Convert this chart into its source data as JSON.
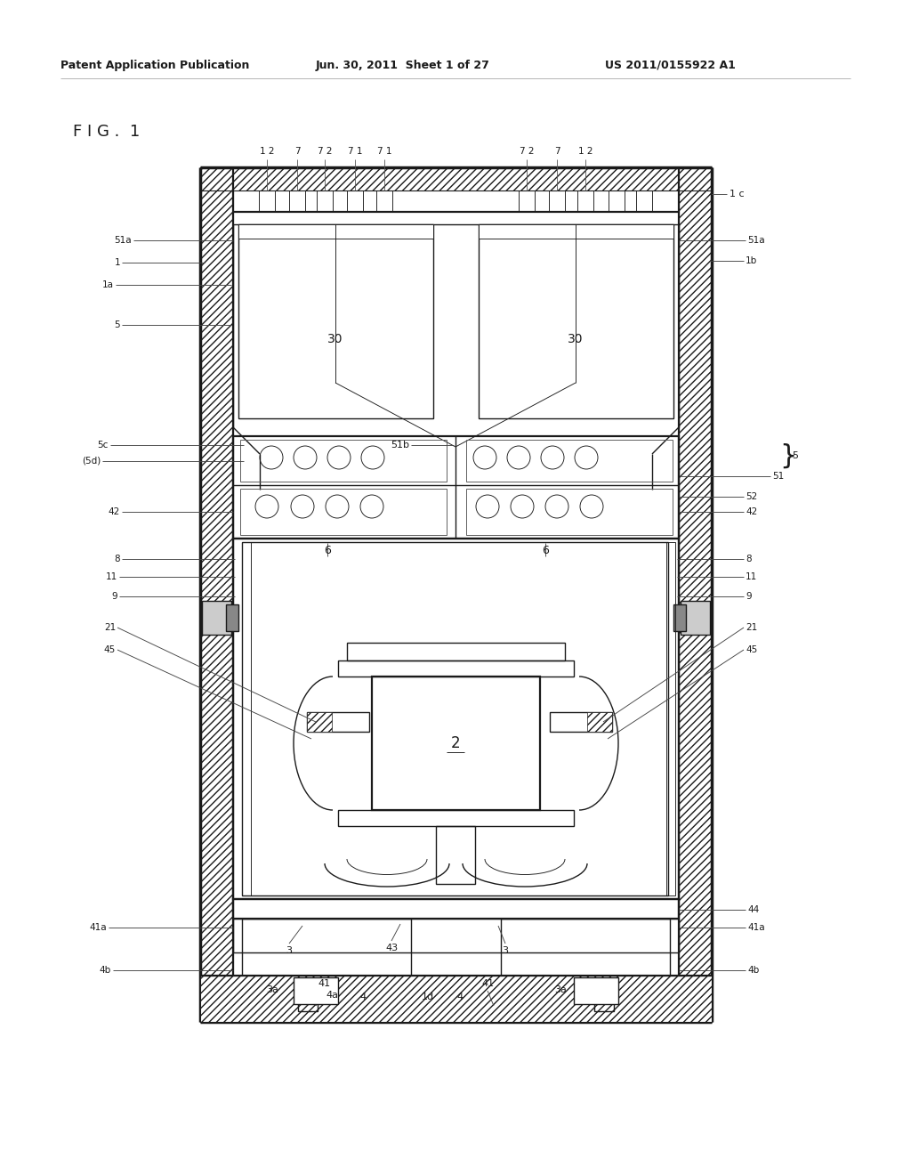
{
  "bg_color": "#ffffff",
  "line_color": "#1a1a1a",
  "header_left": "Patent Application Publication",
  "header_mid": "Jun. 30, 2011  Sheet 1 of 27",
  "header_right": "US 2011/0155922 A1",
  "fig_label": "F I G .  1"
}
